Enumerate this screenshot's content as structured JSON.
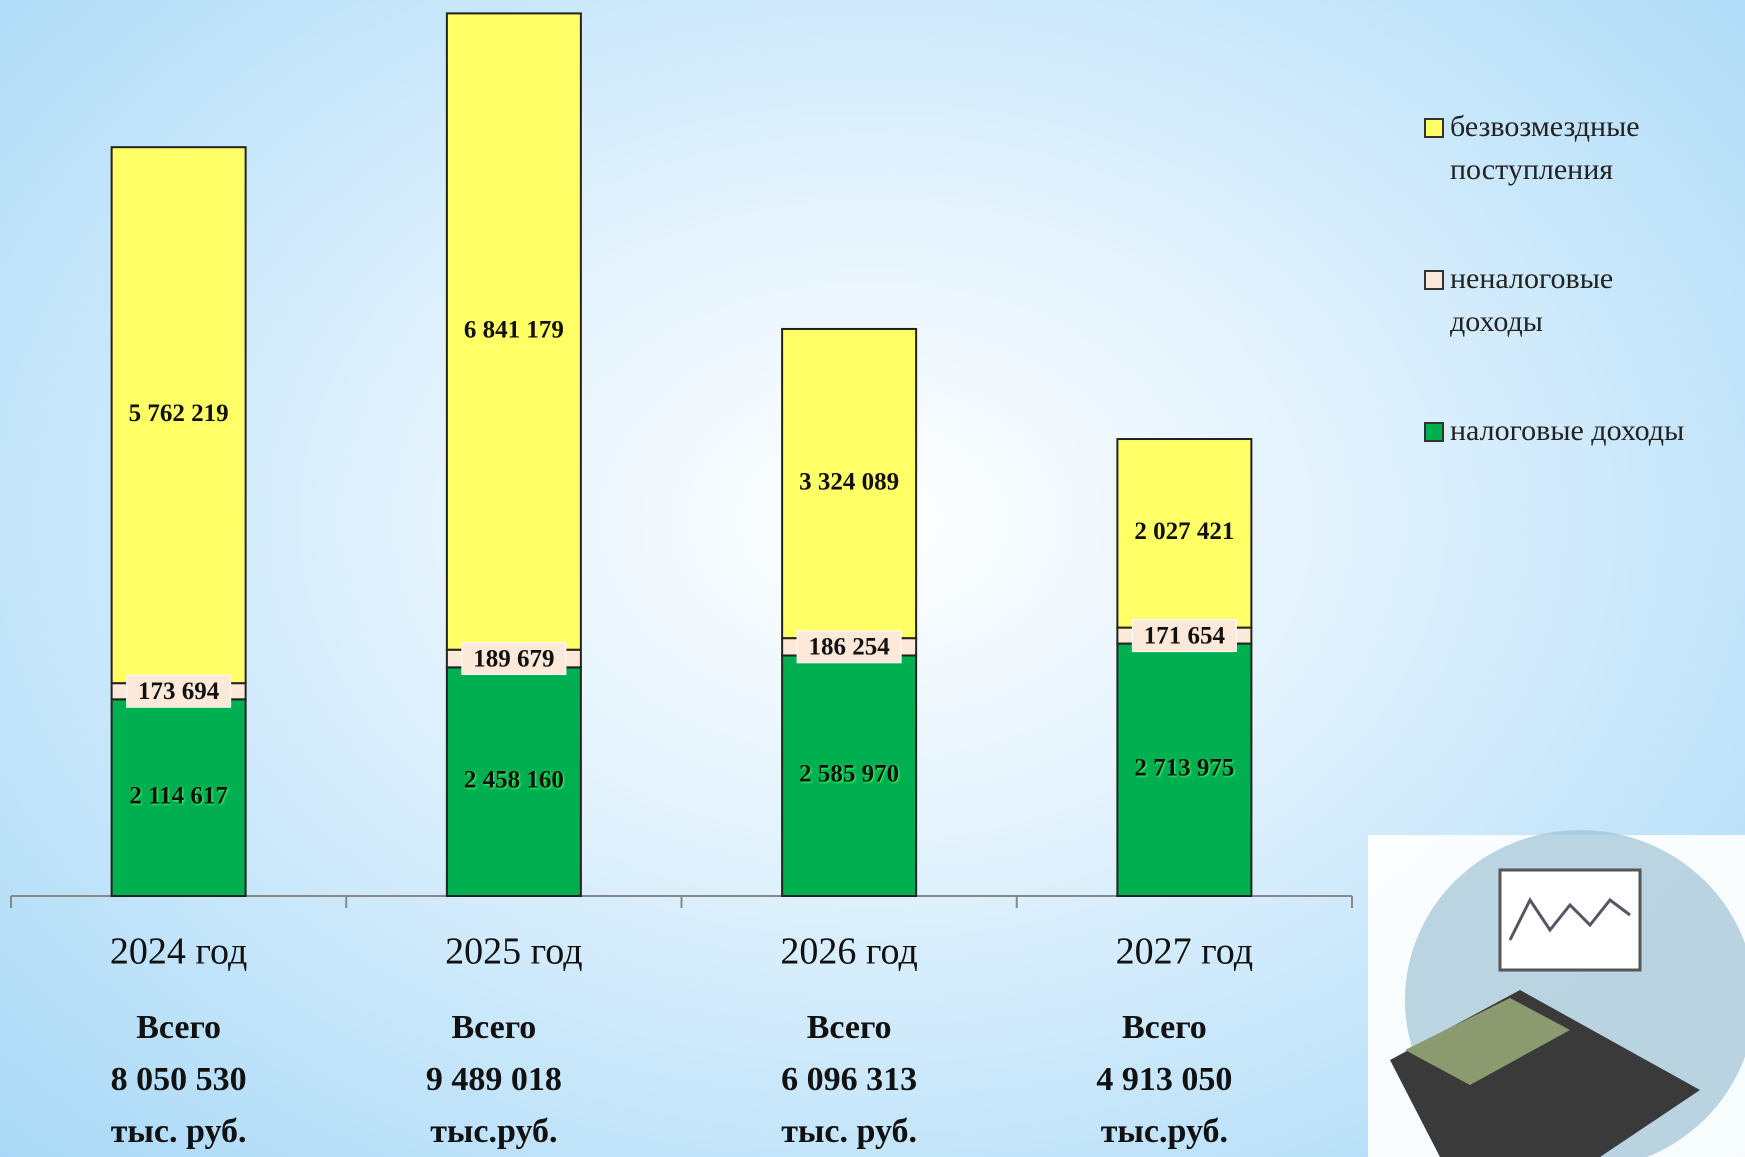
{
  "chart_data": {
    "type": "stacked_bar",
    "categories": [
      "2024 год",
      "2025 год",
      "2026 год",
      "2027 год"
    ],
    "series": [
      {
        "name": "налоговые доходы",
        "color": "#00b050",
        "values": [
          2114617,
          2458160,
          2585970,
          2713975
        ],
        "value_labels": [
          "2 114 617",
          "2 458 160",
          "2 585 970",
          "2 713 975"
        ]
      },
      {
        "name": "неналоговые доходы",
        "color": "#fde9d9",
        "values": [
          173694,
          189679,
          186254,
          171654
        ],
        "value_labels": [
          "173 694",
          "189 679",
          "186 254",
          "171 654"
        ]
      },
      {
        "name": "безвозмездные поступления",
        "color": "#ffff66",
        "values": [
          5762219,
          6841179,
          3324089,
          2027421
        ],
        "value_labels": [
          "5 762 219",
          "6 841 179",
          "3 324 089",
          "2 027 421"
        ]
      }
    ],
    "totals": [
      [
        "Всего",
        "8 050 530",
        "тыс. руб."
      ],
      [
        "Всего",
        "9 489 018",
        "тыс.руб."
      ],
      [
        "Всего",
        "6 096 313",
        "тыс. руб."
      ],
      [
        "Всего",
        "4 913 050",
        "тыс.руб."
      ]
    ],
    "ylim": [
      0,
      9633000
    ],
    "legend": "right"
  }
}
